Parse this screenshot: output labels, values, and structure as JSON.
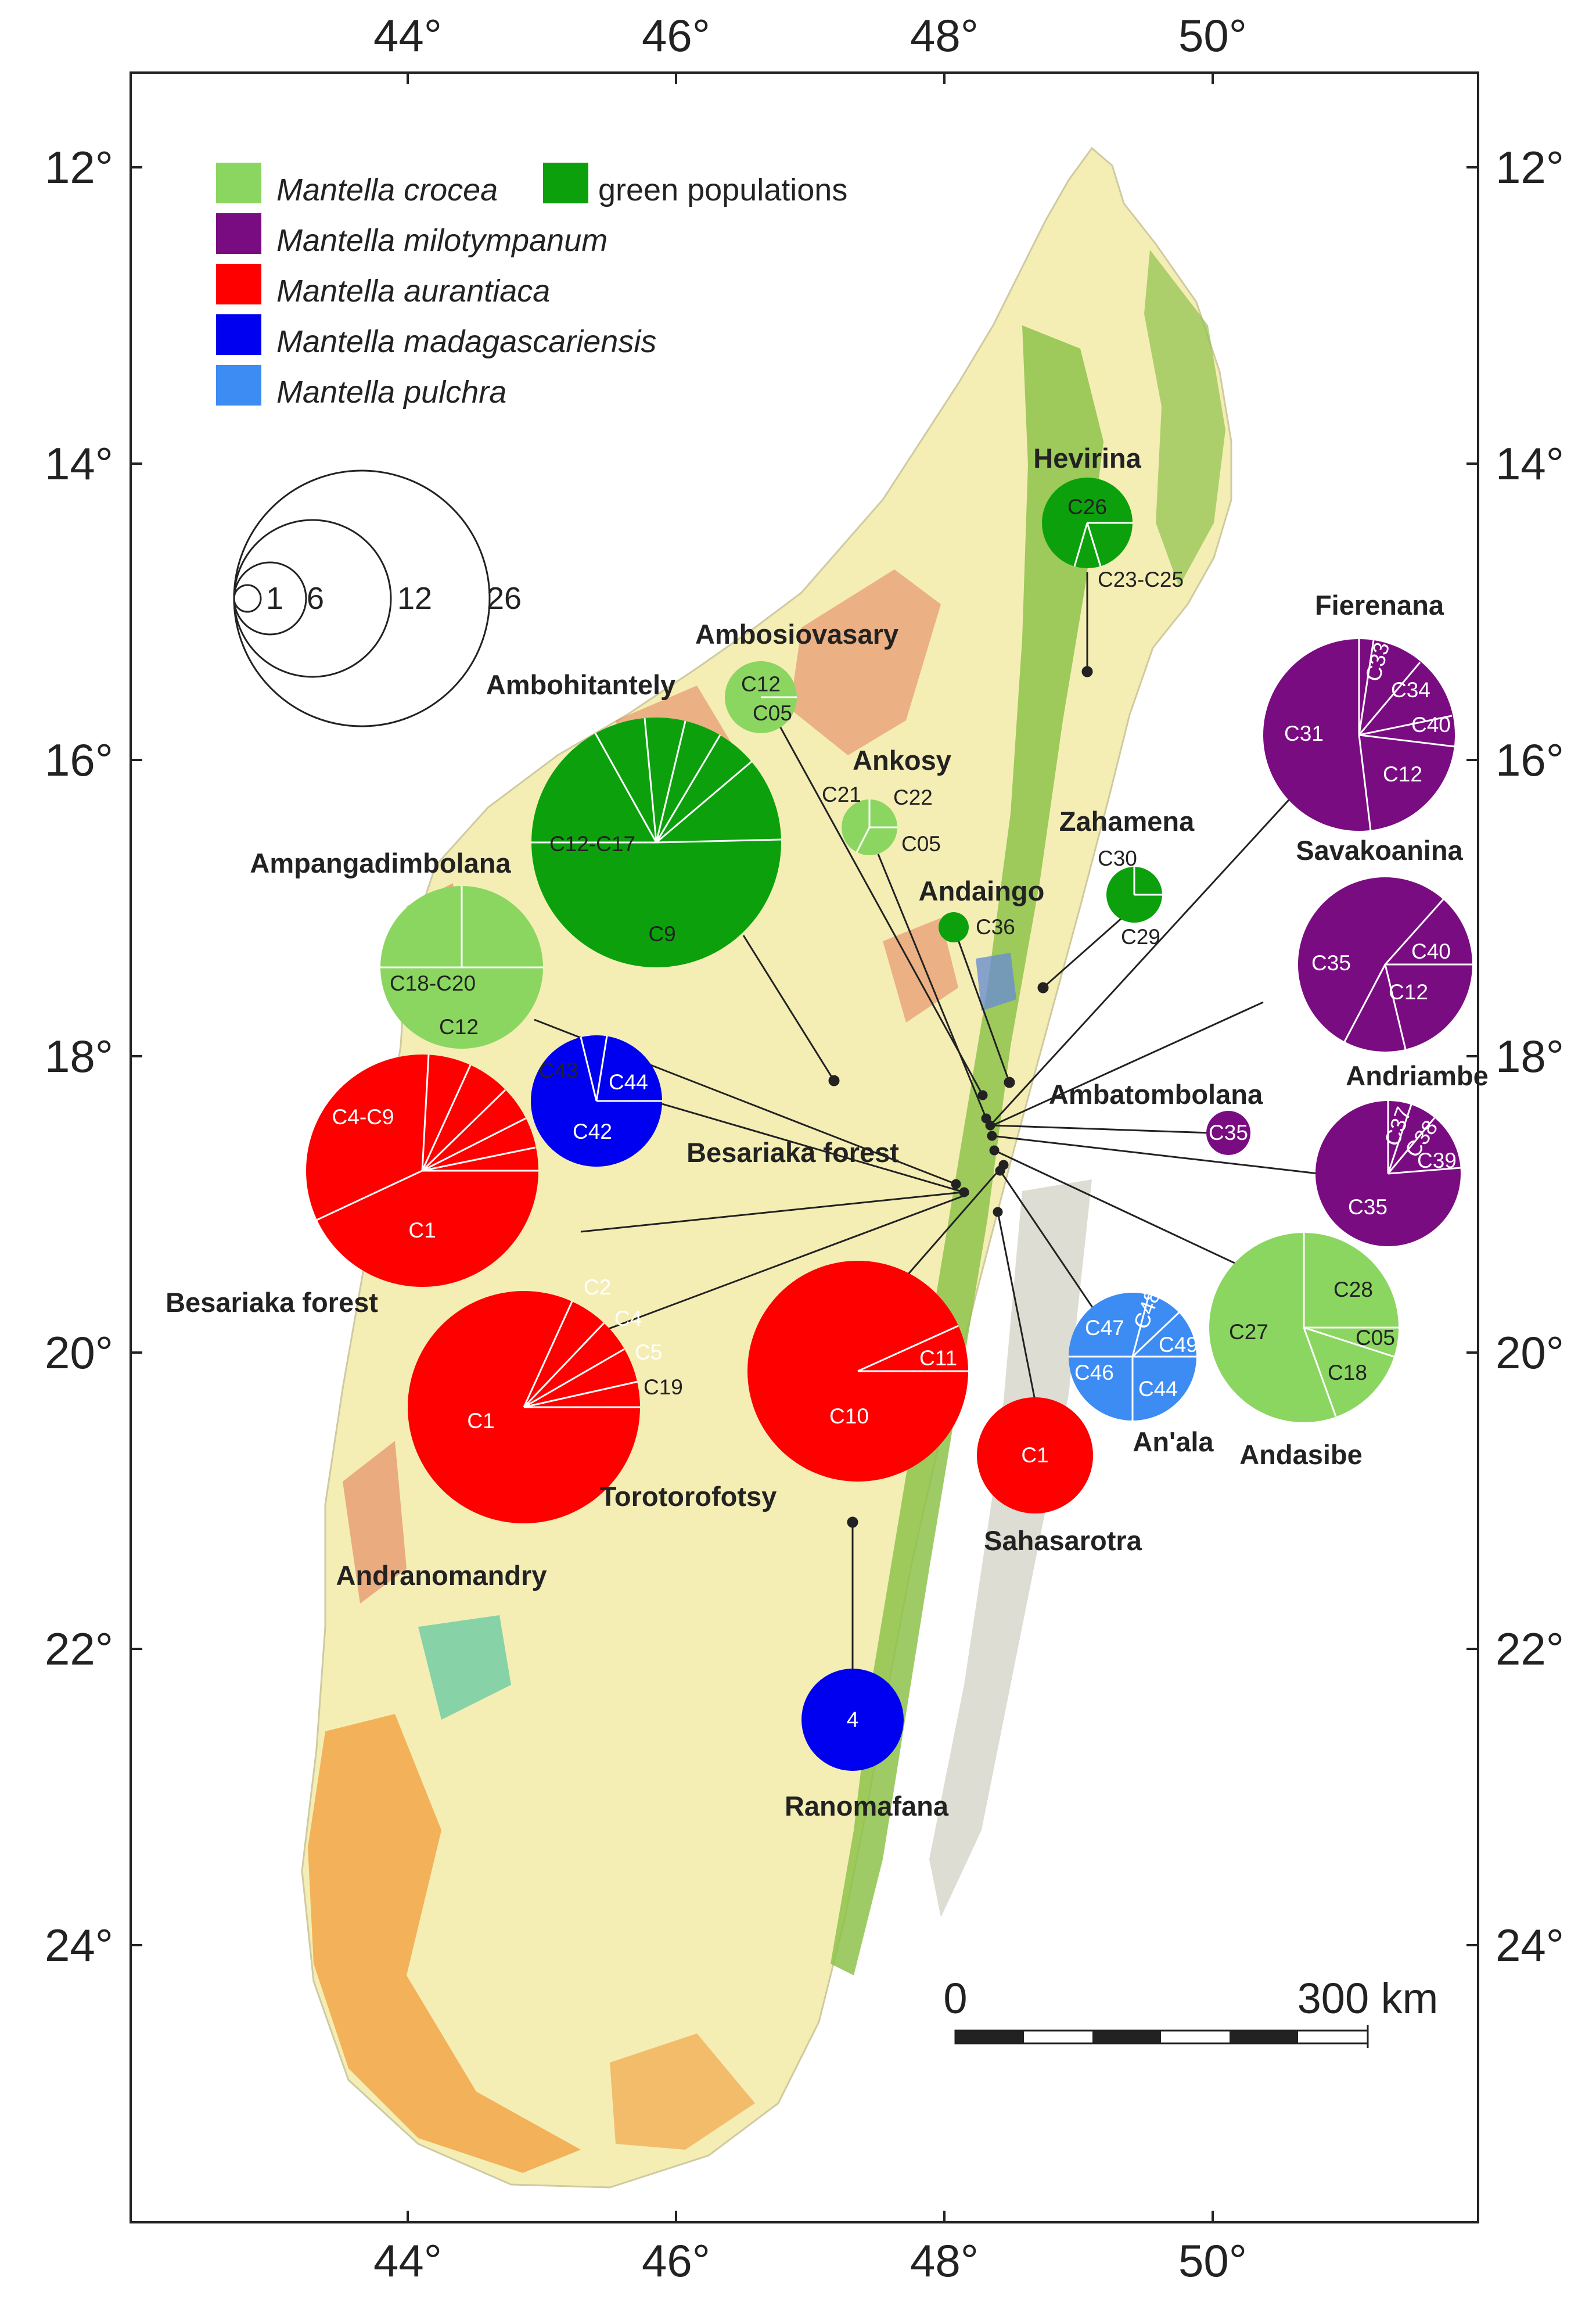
{
  "axes": {
    "top_longitudes": [
      "44°",
      "46°",
      "48°",
      "50°"
    ],
    "bottom_longitudes": [
      "44°",
      "46°",
      "48°",
      "50°"
    ],
    "left_latitudes": [
      "12°",
      "14°",
      "16°",
      "18°",
      "20°",
      "22°",
      "24°"
    ],
    "right_latitudes": [
      "12°",
      "14°",
      "16°",
      "18°",
      "20°",
      "22°",
      "24°"
    ]
  },
  "legend": {
    "items": [
      {
        "label": "Mantella crocea",
        "color": "#8bd660",
        "italic": true
      },
      {
        "label": "green populations",
        "color": "#0ca10c",
        "italic": false
      },
      {
        "label": "Mantella milotympanum",
        "color": "#7a0c82",
        "italic": true
      },
      {
        "label": "Mantella aurantiaca",
        "color": "#ff0000",
        "italic": true
      },
      {
        "label": "Mantella madagascariensis",
        "color": "#0000f0",
        "italic": true
      },
      {
        "label": "Mantella pulchra",
        "color": "#3c8cf4",
        "italic": true
      }
    ]
  },
  "size_legend": {
    "values": [
      "1",
      "6",
      "12",
      "26"
    ]
  },
  "scale_bar": {
    "start": "0",
    "end": "300 km"
  },
  "site_names": {
    "hevirina": "Hevirina",
    "ambosiovasary": "Ambosiovasary",
    "ambohitantely": "Ambohitantely",
    "ankosy": "Ankosy",
    "zahamena": "Zahamena",
    "andaingo": "Andaingo",
    "ampangadimbolana": "Ampangadimbolana",
    "fierenana": "Fierenana",
    "savakoanina": "Savakoanina",
    "andriambe": "Andriambe",
    "ambatombolana": "Ambatombolana",
    "besariaka_forest_1": "Besariaka forest",
    "besariaka_forest_2": "Besariaka forest",
    "torotorofotsy": "Torotorofotsy",
    "andranomandry": "Andranomandry",
    "sahasarotra": "Sahasarotra",
    "an_ala": "An'ala",
    "andasibe": "Andasibe",
    "ranomafana": "Ranomafana"
  },
  "haplotype_labels": {
    "hevirina": [
      "C26",
      "C23-C25"
    ],
    "ambosiovasary": [
      "C12",
      "C05"
    ],
    "ambohitantely": [
      "C12-C17",
      "C9"
    ],
    "ankosy": [
      "C21",
      "C22",
      "C05"
    ],
    "zahamena": [
      "C30",
      "C29"
    ],
    "andaingo": [
      "C36"
    ],
    "ampangadimbolana": [
      "C18-C20",
      "C12"
    ],
    "fierenana": [
      "C33",
      "C34",
      "C31",
      "C40",
      "C12"
    ],
    "savakoanina": [
      "C35",
      "C40",
      "C12"
    ],
    "andriambe": [
      "C37",
      "C38",
      "C39",
      "C35"
    ],
    "ambatombolana": [
      "C35"
    ],
    "besariaka_red": [
      "C4-C9",
      "C1"
    ],
    "besariaka_blue": [
      "C43",
      "C44",
      "C42"
    ],
    "torotorofotsy": [
      "C2",
      "C4",
      "C5",
      "C19",
      "C1"
    ],
    "andranomandry": [
      "C11",
      "C10"
    ],
    "sahasarotra": [
      "C1"
    ],
    "an_ala": [
      "C47",
      "C48",
      "C49",
      "C46",
      "C44"
    ],
    "andasibe": [
      "C28",
      "C27",
      "C05",
      "C18"
    ],
    "ranomafana": [
      "4"
    ]
  }
}
